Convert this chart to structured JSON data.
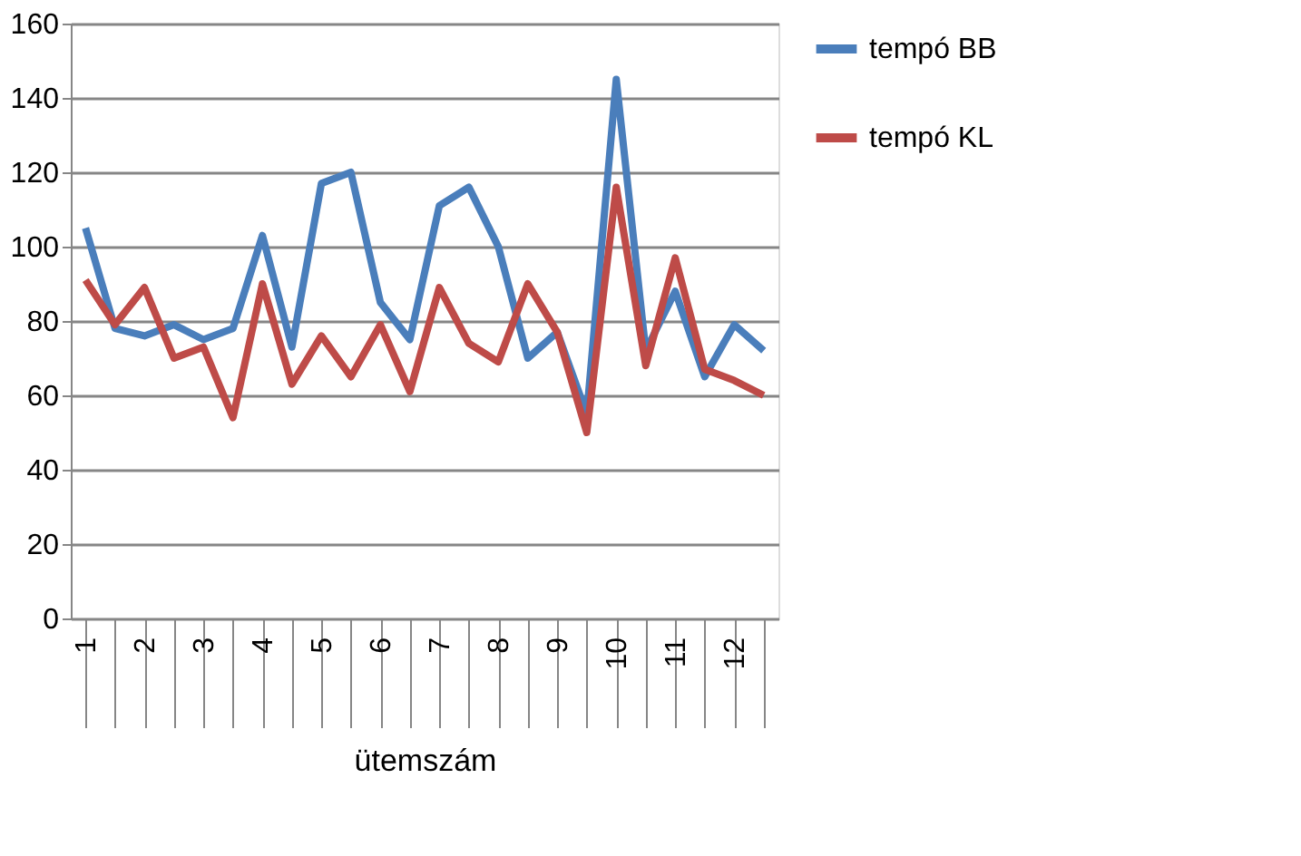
{
  "chart_data": {
    "type": "line",
    "xlabel": "ütemszám",
    "categories": [
      "1",
      null,
      "2",
      null,
      "3",
      null,
      "4",
      null,
      "5",
      null,
      "6",
      null,
      "7",
      null,
      "8",
      null,
      "9",
      null,
      "10",
      null,
      "11",
      null,
      "12",
      null
    ],
    "series": [
      {
        "name": "tempó BB",
        "color": "#4a7ebb",
        "values": [
          105,
          78,
          76,
          79,
          75,
          78,
          103,
          73,
          117,
          120,
          85,
          75,
          111,
          116,
          100,
          70,
          77,
          55,
          145,
          72,
          88,
          65,
          79,
          72
        ]
      },
      {
        "name": "tempó KL",
        "color": "#be4b48",
        "values": [
          91,
          79,
          89,
          70,
          73,
          54,
          90,
          63,
          76,
          65,
          79,
          61,
          89,
          74,
          69,
          90,
          77,
          50,
          116,
          68,
          97,
          67,
          64,
          60
        ]
      }
    ],
    "ylim": [
      0,
      160
    ],
    "yticks": [
      0,
      20,
      40,
      60,
      80,
      100,
      120,
      140,
      160
    ],
    "grid": "y",
    "legend": "right",
    "marker": "none",
    "line_style": "solid"
  }
}
